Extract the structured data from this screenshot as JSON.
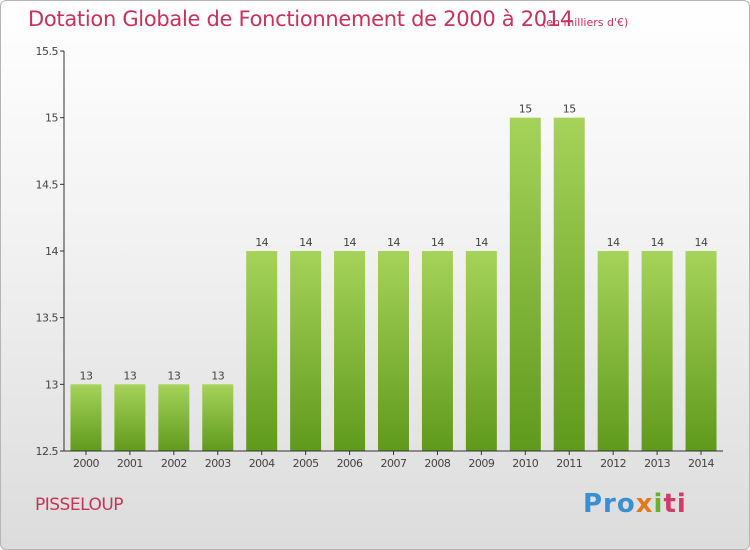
{
  "header": {
    "title": "Dotation Globale de Fonctionnement de 2000 à 2014",
    "subtitle": "(en milliers d'€)"
  },
  "footer": {
    "commune": "PISSELOUP",
    "logo_parts": [
      "Pro",
      "x",
      "i",
      "ti"
    ]
  },
  "colors": {
    "title": "#c8325a",
    "bar_top": "#a6d35a",
    "bar_bottom": "#5f9a1c",
    "axis": "#333333"
  },
  "chart_data": {
    "type": "bar",
    "title": "Dotation Globale de Fonctionnement de 2000 à 2014",
    "subtitle": "(en milliers d'€)",
    "categories": [
      "2000",
      "2001",
      "2002",
      "2003",
      "2004",
      "2005",
      "2006",
      "2007",
      "2008",
      "2009",
      "2010",
      "2011",
      "2012",
      "2013",
      "2014"
    ],
    "values": [
      13,
      13,
      13,
      13,
      14,
      14,
      14,
      14,
      14,
      14,
      15,
      15,
      14,
      14,
      14
    ],
    "data_labels": [
      "13",
      "13",
      "13",
      "13",
      "14",
      "14",
      "14",
      "14",
      "14",
      "14",
      "15",
      "15",
      "14",
      "14",
      "14"
    ],
    "ylim": [
      12.5,
      15.5
    ],
    "yticks": [
      12.5,
      13,
      13.5,
      14,
      14.5,
      15,
      15.5
    ],
    "ytick_labels": [
      "12.5",
      "13",
      "13.5",
      "14",
      "14.5",
      "15",
      "15.5"
    ],
    "grid": false,
    "legend": "none",
    "xlabel": "",
    "ylabel": ""
  }
}
